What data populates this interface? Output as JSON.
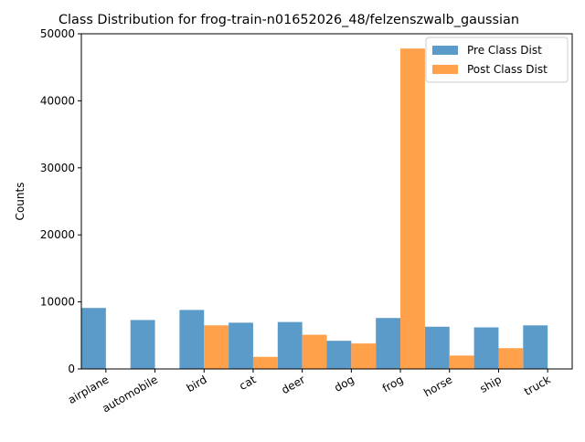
{
  "chart_data": {
    "type": "bar",
    "title": "Class Distribution for frog-train-n01652026_48/felzenszwalb_gaussian",
    "xlabel": "",
    "ylabel": "Counts",
    "categories": [
      "airplane",
      "automobile",
      "bird",
      "cat",
      "deer",
      "dog",
      "frog",
      "horse",
      "ship",
      "truck"
    ],
    "series": [
      {
        "name": "Pre Class Dist",
        "color": "#5b9bc9",
        "values": [
          9100,
          7300,
          8800,
          6900,
          7000,
          4200,
          7600,
          6300,
          6200,
          6500
        ]
      },
      {
        "name": "Post Class Dist",
        "color": "#ffa04a",
        "values": [
          0,
          0,
          6500,
          1800,
          5100,
          3800,
          47800,
          2000,
          3100,
          0
        ]
      }
    ],
    "ylim": [
      0,
      50000
    ],
    "yticks": [
      0,
      10000,
      20000,
      30000,
      40000,
      50000
    ],
    "legend_position": "top-right",
    "grid": false
  }
}
